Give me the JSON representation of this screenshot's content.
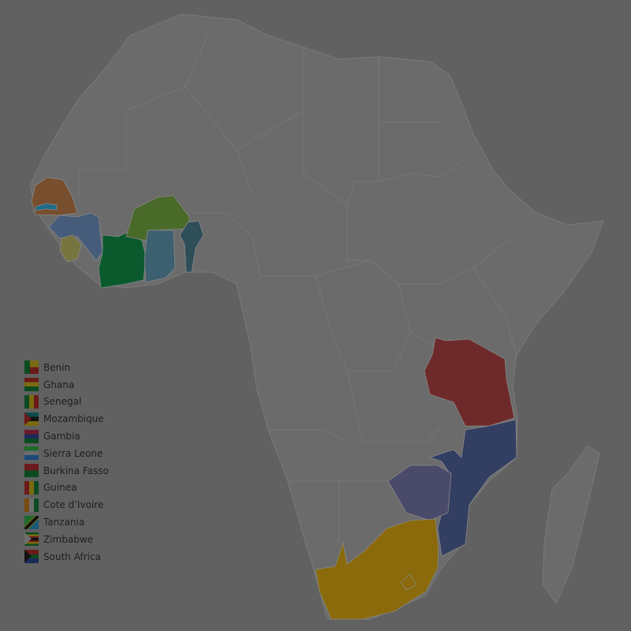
{
  "map": {
    "background": "#616161",
    "land_color": "#6b6b6b",
    "border_color": "#7a7a7a",
    "highlighted": [
      {
        "name": "Senegal",
        "color": "#774e2e"
      },
      {
        "name": "Gambia",
        "color": "#1f6c8a"
      },
      {
        "name": "Guinea",
        "color": "#465c7a"
      },
      {
        "name": "Sierra Leone",
        "color": "#77753f"
      },
      {
        "name": "Cote d'Ivoire",
        "color": "#0a5a2e"
      },
      {
        "name": "Burkina Fasso",
        "color": "#4a6a2a"
      },
      {
        "name": "Ghana",
        "color": "#3d6070"
      },
      {
        "name": "Benin",
        "color": "#2e4e58"
      },
      {
        "name": "Tanzania",
        "color": "#6e2a2a"
      },
      {
        "name": "Mozambique",
        "color": "#323e62"
      },
      {
        "name": "Zimbabwe",
        "color": "#4a4a6a"
      },
      {
        "name": "South Africa",
        "color": "#8a6a0a"
      }
    ]
  },
  "legend": [
    {
      "label": "Benin",
      "flag": "benin-flag"
    },
    {
      "label": "Ghana",
      "flag": "ghana-flag"
    },
    {
      "label": "Senegal",
      "flag": "senegal-flag"
    },
    {
      "label": "Mozambique",
      "flag": "mozambique-flag"
    },
    {
      "label": "Gambia",
      "flag": "gambia-flag"
    },
    {
      "label": "Sierra Leone",
      "flag": "sierra-leone-flag"
    },
    {
      "label": "Burkina Fasso",
      "flag": "burkina-faso-flag"
    },
    {
      "label": "Guinea",
      "flag": "guinea-flag"
    },
    {
      "label": "Cote d’Ivoire",
      "flag": "cote-divoire-flag"
    },
    {
      "label": "Tanzania",
      "flag": "tanzania-flag"
    },
    {
      "label": "Zimbabwe",
      "flag": "zimbabwe-flag"
    },
    {
      "label": "South Africa",
      "flag": "south-africa-flag"
    }
  ]
}
